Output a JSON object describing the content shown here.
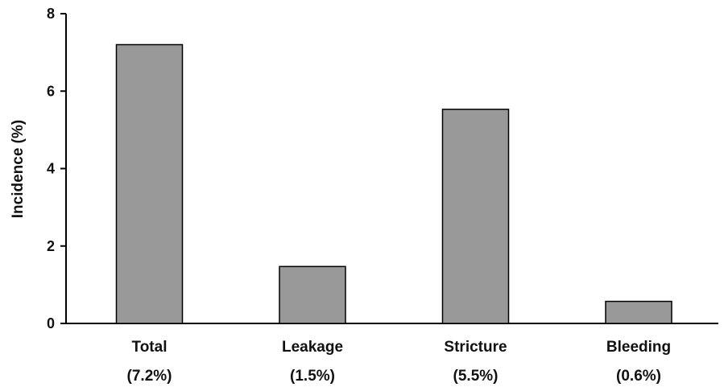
{
  "chart_data": {
    "type": "bar",
    "categories": [
      "Total",
      "Leakage",
      "Stricture",
      "Bleeding"
    ],
    "category_sublabels": [
      "(7.2%)",
      "(1.5%)",
      "(5.5%)",
      "(0.6%)"
    ],
    "values": [
      7.2,
      1.47,
      5.53,
      0.57
    ],
    "title": "",
    "xlabel": "",
    "ylabel": "Incidence (%)",
    "ylim": [
      0,
      8
    ],
    "yticks": [
      0,
      2,
      4,
      6,
      8
    ],
    "grid": false,
    "legend": "none",
    "bar_color": "#999999",
    "bar_stroke": "#000000"
  }
}
